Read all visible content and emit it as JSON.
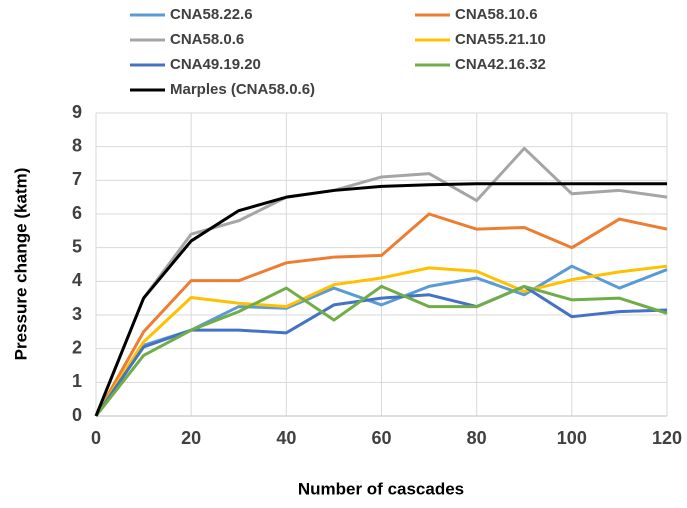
{
  "chart_data": {
    "type": "line",
    "x_label": "Number of cascades",
    "y_label": "Pressure change (katm)",
    "x": [
      0,
      10,
      20,
      30,
      40,
      50,
      60,
      70,
      80,
      90,
      100,
      110,
      120
    ],
    "xlim": [
      0,
      120
    ],
    "xticks": [
      0,
      20,
      40,
      60,
      80,
      100,
      120
    ],
    "ylim": [
      0,
      9
    ],
    "yticks": [
      0,
      1,
      2,
      3,
      4,
      5,
      6,
      7,
      8,
      9
    ],
    "grid": true,
    "legend": "top",
    "series": [
      {
        "name": "CNA58.22.6",
        "color": "#5b9bd5",
        "values": [
          0,
          2.1,
          2.55,
          3.25,
          3.2,
          3.8,
          3.3,
          3.85,
          4.1,
          3.6,
          4.45,
          3.8,
          4.35
        ]
      },
      {
        "name": "CNA58.10.6",
        "color": "#ed7d31",
        "values": [
          0,
          2.5,
          4.02,
          4.02,
          4.55,
          4.72,
          4.77,
          6.0,
          5.55,
          5.6,
          5.0,
          5.85,
          5.55
        ]
      },
      {
        "name": "CNA58.0.6",
        "color": "#a5a5a5",
        "values": [
          0,
          3.5,
          5.4,
          5.8,
          6.5,
          6.7,
          7.1,
          7.2,
          6.4,
          7.95,
          6.6,
          6.7,
          6.5
        ]
      },
      {
        "name": "CNA55.21.10",
        "color": "#ffc000",
        "values": [
          0,
          2.2,
          3.52,
          3.35,
          3.25,
          3.9,
          4.1,
          4.4,
          4.3,
          3.7,
          4.05,
          4.28,
          4.45
        ]
      },
      {
        "name": "CNA49.19.20",
        "color": "#4472c4",
        "values": [
          0,
          2.05,
          2.55,
          2.55,
          2.47,
          3.3,
          3.5,
          3.6,
          3.25,
          3.85,
          2.95,
          3.1,
          3.15
        ]
      },
      {
        "name": "CNA42.16.32",
        "color": "#70ad47",
        "values": [
          0,
          1.8,
          2.55,
          3.1,
          3.8,
          2.85,
          3.85,
          3.25,
          3.25,
          3.85,
          3.45,
          3.5,
          3.05
        ]
      },
      {
        "name": "Marples (CNA58.0.6)",
        "color": "#000000",
        "values": [
          0,
          3.5,
          5.2,
          6.1,
          6.5,
          6.7,
          6.82,
          6.87,
          6.9,
          6.9,
          6.9,
          6.9,
          6.9
        ]
      }
    ]
  }
}
